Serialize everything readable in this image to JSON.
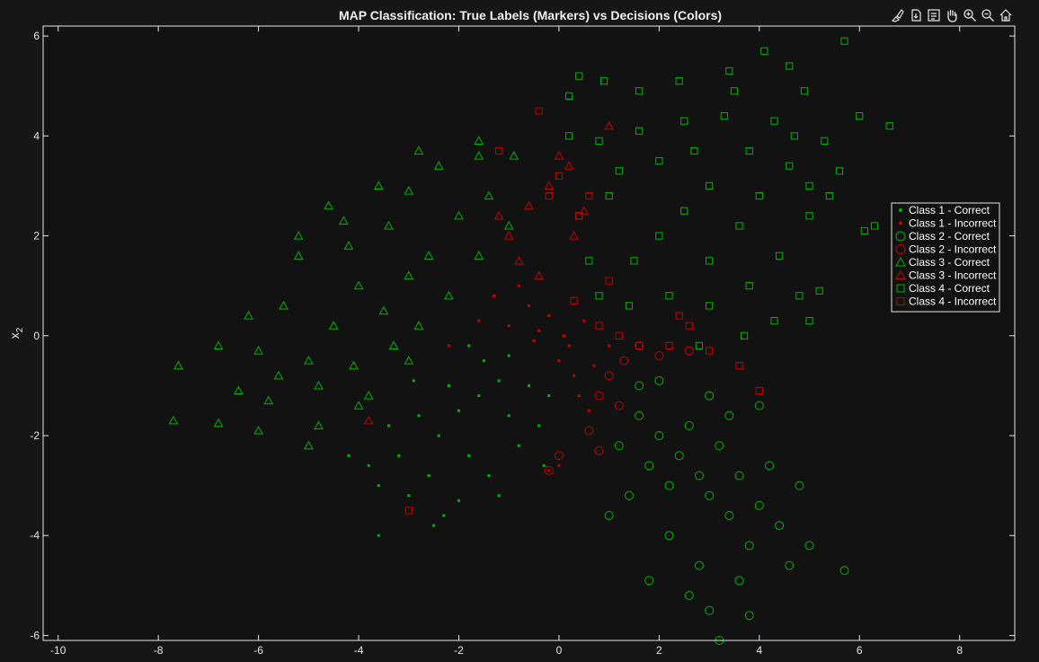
{
  "toolbar": {
    "icons": [
      "brush-icon",
      "export-icon",
      "datatip-icon",
      "pan-hand-icon",
      "zoom-in-icon",
      "zoom-out-icon",
      "home-icon"
    ]
  },
  "chart_data": {
    "type": "scatter",
    "title": "MAP Classification: True Labels (Markers) vs Decisions (Colors)",
    "xlabel": "",
    "ylabel": "x",
    "ylabel_subscript": "2",
    "xlim": [
      -10.3,
      9.1
    ],
    "ylim": [
      -6.1,
      6.2
    ],
    "xticks": [
      -10,
      -8,
      -6,
      -4,
      -2,
      0,
      2,
      4,
      6,
      8
    ],
    "yticks": [
      -6,
      -4,
      -2,
      0,
      2,
      4,
      6
    ],
    "grid": false,
    "background": "#121212",
    "axes_color": "#e6e6e6",
    "correct_color": "#00b400",
    "incorrect_color": "#c80000",
    "legend_placement": "right",
    "legend": [
      {
        "label": "Class 1 - Correct",
        "marker": "dot",
        "color": "#00b400"
      },
      {
        "label": "Class 1 - Incorrect",
        "marker": "dot",
        "color": "#c80000"
      },
      {
        "label": "Class 2 - Correct",
        "marker": "circle",
        "color": "#00b400"
      },
      {
        "label": "Class 2 - Incorrect",
        "marker": "circle",
        "color": "#c80000"
      },
      {
        "label": "Class 3 - Correct",
        "marker": "triangle",
        "color": "#00b400"
      },
      {
        "label": "Class 3 - Incorrect",
        "marker": "triangle",
        "color": "#c80000"
      },
      {
        "label": "Class 4 - Correct",
        "marker": "square",
        "color": "#00b400"
      },
      {
        "label": "Class 4 - Incorrect",
        "marker": "square",
        "color": "#c80000"
      }
    ],
    "series": [
      {
        "class": 1,
        "marker": "dot",
        "correct": [
          [
            -2.0,
            -1.5
          ],
          [
            -1.6,
            -1.2
          ],
          [
            -1.2,
            -0.9
          ],
          [
            -2.4,
            -2.0
          ],
          [
            -1.8,
            -2.4
          ],
          [
            -1.0,
            -1.6
          ],
          [
            -0.6,
            -1.0
          ],
          [
            -2.8,
            -1.6
          ],
          [
            -3.2,
            -2.4
          ],
          [
            -2.6,
            -2.8
          ],
          [
            -1.4,
            -2.8
          ],
          [
            -0.8,
            -2.2
          ],
          [
            -0.4,
            -1.8
          ],
          [
            -2.2,
            -1.0
          ],
          [
            -1.5,
            -0.5
          ],
          [
            -3.0,
            -3.2
          ],
          [
            -2.0,
            -3.3
          ],
          [
            -3.6,
            -3.0
          ],
          [
            -3.8,
            -2.6
          ],
          [
            -1.2,
            -3.2
          ],
          [
            -0.3,
            -2.6
          ],
          [
            -2.5,
            -3.8
          ],
          [
            -3.6,
            -4.0
          ],
          [
            -1.0,
            -0.4
          ],
          [
            -0.2,
            -1.2
          ],
          [
            -1.8,
            -0.2
          ],
          [
            -2.9,
            -0.9
          ],
          [
            -3.4,
            -1.8
          ],
          [
            -4.2,
            -2.4
          ],
          [
            -2.3,
            -3.6
          ]
        ],
        "incorrect": [
          [
            -0.4,
            0.1
          ],
          [
            -0.2,
            0.4
          ],
          [
            0.1,
            0.0
          ],
          [
            -0.6,
            0.6
          ],
          [
            -1.0,
            0.2
          ],
          [
            0.0,
            -0.5
          ],
          [
            0.3,
            -0.8
          ],
          [
            0.4,
            -1.2
          ],
          [
            0.6,
            -1.5
          ],
          [
            -1.3,
            0.8
          ],
          [
            -0.8,
            1.0
          ],
          [
            0.2,
            -0.2
          ],
          [
            0.5,
            0.3
          ],
          [
            0.7,
            -0.6
          ],
          [
            1.0,
            -0.2
          ],
          [
            -0.5,
            -0.1
          ],
          [
            0.0,
            -2.6
          ],
          [
            -0.2,
            -2.7
          ],
          [
            -2.2,
            -0.2
          ],
          [
            -1.6,
            0.3
          ]
        ]
      },
      {
        "class": 2,
        "marker": "circle",
        "correct": [
          [
            2.0,
            -2.0
          ],
          [
            2.4,
            -2.4
          ],
          [
            2.8,
            -2.8
          ],
          [
            1.6,
            -1.6
          ],
          [
            3.0,
            -3.2
          ],
          [
            3.4,
            -3.6
          ],
          [
            2.2,
            -3.0
          ],
          [
            1.8,
            -2.6
          ],
          [
            2.6,
            -1.8
          ],
          [
            3.2,
            -2.2
          ],
          [
            3.6,
            -2.8
          ],
          [
            4.0,
            -3.4
          ],
          [
            4.4,
            -3.8
          ],
          [
            3.8,
            -4.2
          ],
          [
            2.8,
            -4.6
          ],
          [
            2.2,
            -4.0
          ],
          [
            1.4,
            -3.2
          ],
          [
            1.2,
            -2.2
          ],
          [
            1.6,
            -1.0
          ],
          [
            2.0,
            -0.9
          ],
          [
            3.0,
            -1.2
          ],
          [
            3.4,
            -1.6
          ],
          [
            4.2,
            -2.6
          ],
          [
            4.8,
            -3.0
          ],
          [
            5.0,
            -4.2
          ],
          [
            4.6,
            -4.6
          ],
          [
            3.6,
            -4.9
          ],
          [
            3.0,
            -5.5
          ],
          [
            3.2,
            -6.1
          ],
          [
            5.7,
            -4.7
          ],
          [
            1.0,
            -3.6
          ],
          [
            2.6,
            -5.2
          ],
          [
            3.8,
            -5.6
          ],
          [
            1.8,
            -4.9
          ],
          [
            4.0,
            -1.4
          ]
        ],
        "incorrect": [
          [
            1.0,
            -0.8
          ],
          [
            1.3,
            -0.5
          ],
          [
            0.8,
            -1.2
          ],
          [
            1.6,
            -0.2
          ],
          [
            2.0,
            -0.4
          ],
          [
            0.6,
            -1.9
          ],
          [
            0.8,
            -2.3
          ],
          [
            1.2,
            -1.4
          ],
          [
            2.6,
            -0.3
          ],
          [
            0.0,
            -2.4
          ],
          [
            -0.2,
            -2.7
          ]
        ]
      },
      {
        "class": 3,
        "marker": "triangle",
        "correct": [
          [
            -4.0,
            1.0
          ],
          [
            -3.5,
            0.5
          ],
          [
            -3.0,
            1.2
          ],
          [
            -4.5,
            0.2
          ],
          [
            -5.0,
            -0.5
          ],
          [
            -4.2,
            1.8
          ],
          [
            -3.4,
            2.2
          ],
          [
            -2.6,
            1.6
          ],
          [
            -2.0,
            2.4
          ],
          [
            -1.4,
            2.8
          ],
          [
            -5.5,
            0.6
          ],
          [
            -6.0,
            -0.3
          ],
          [
            -6.4,
            -1.1
          ],
          [
            -5.8,
            -1.3
          ],
          [
            -4.8,
            -1.8
          ],
          [
            -3.8,
            -1.2
          ],
          [
            -2.8,
            0.2
          ],
          [
            -2.2,
            0.8
          ],
          [
            -1.6,
            1.6
          ],
          [
            -1.0,
            2.2
          ],
          [
            -3.0,
            2.9
          ],
          [
            -2.4,
            3.4
          ],
          [
            -1.6,
            3.6
          ],
          [
            -4.6,
            2.6
          ],
          [
            -3.6,
            3.0
          ],
          [
            -5.2,
            1.6
          ],
          [
            -6.2,
            0.4
          ],
          [
            -6.8,
            -0.2
          ],
          [
            -7.6,
            -0.6
          ],
          [
            -7.7,
            -1.7
          ],
          [
            -6.8,
            -1.75
          ],
          [
            -6.0,
            -1.9
          ],
          [
            -5.0,
            -2.2
          ],
          [
            -4.0,
            -1.4
          ],
          [
            -3.0,
            -0.5
          ],
          [
            -1.6,
            3.9
          ],
          [
            -0.9,
            3.6
          ],
          [
            -2.8,
            3.7
          ],
          [
            -4.3,
            2.3
          ],
          [
            -5.2,
            2.0
          ],
          [
            -4.1,
            -0.6
          ],
          [
            -3.3,
            -0.2
          ],
          [
            -4.8,
            -1.0
          ],
          [
            -5.6,
            -0.8
          ]
        ],
        "incorrect": [
          [
            -1.0,
            2.0
          ],
          [
            -0.6,
            2.6
          ],
          [
            -0.2,
            3.0
          ],
          [
            0.2,
            3.4
          ],
          [
            -0.8,
            1.5
          ],
          [
            0.5,
            2.5
          ],
          [
            0.0,
            3.6
          ],
          [
            1.0,
            4.2
          ],
          [
            -0.4,
            1.2
          ],
          [
            0.3,
            2.0
          ],
          [
            -3.8,
            -1.7
          ],
          [
            -1.2,
            2.4
          ]
        ]
      },
      {
        "class": 4,
        "marker": "square",
        "correct": [
          [
            2.0,
            2.0
          ],
          [
            1.5,
            1.5
          ],
          [
            2.5,
            2.5
          ],
          [
            3.0,
            3.0
          ],
          [
            1.0,
            2.8
          ],
          [
            2.0,
            3.5
          ],
          [
            3.0,
            1.5
          ],
          [
            3.6,
            2.2
          ],
          [
            4.0,
            2.8
          ],
          [
            4.6,
            3.4
          ],
          [
            1.4,
            0.6
          ],
          [
            2.2,
            0.8
          ],
          [
            3.0,
            0.6
          ],
          [
            3.8,
            1.0
          ],
          [
            4.4,
            1.6
          ],
          [
            5.0,
            2.4
          ],
          [
            5.4,
            2.8
          ],
          [
            5.6,
            3.3
          ],
          [
            6.1,
            2.1
          ],
          [
            6.3,
            2.2
          ],
          [
            6.0,
            4.4
          ],
          [
            6.6,
            4.2
          ],
          [
            5.7,
            5.9
          ],
          [
            4.1,
            5.7
          ],
          [
            4.6,
            5.4
          ],
          [
            3.4,
            5.3
          ],
          [
            2.4,
            5.1
          ],
          [
            1.6,
            4.9
          ],
          [
            0.9,
            5.1
          ],
          [
            0.4,
            5.2
          ],
          [
            0.2,
            4.8
          ],
          [
            0.2,
            4.0
          ],
          [
            3.5,
            4.9
          ],
          [
            4.9,
            4.9
          ],
          [
            4.3,
            4.3
          ],
          [
            0.8,
            3.9
          ],
          [
            1.6,
            4.1
          ],
          [
            2.5,
            4.3
          ],
          [
            3.3,
            4.4
          ],
          [
            4.3,
            0.3
          ],
          [
            3.7,
            0.0
          ],
          [
            2.8,
            -0.2
          ],
          [
            4.8,
            0.8
          ],
          [
            5.2,
            0.9
          ],
          [
            5.0,
            0.3
          ],
          [
            0.6,
            1.5
          ],
          [
            0.4,
            2.4
          ],
          [
            0.8,
            0.8
          ],
          [
            3.8,
            3.7
          ],
          [
            4.7,
            4.0
          ],
          [
            5.3,
            3.9
          ],
          [
            5.0,
            3.0
          ],
          [
            1.2,
            3.3
          ],
          [
            2.7,
            3.7
          ]
        ],
        "incorrect": [
          [
            -0.4,
            4.5
          ],
          [
            0.6,
            2.8
          ],
          [
            0.4,
            2.4
          ],
          [
            -0.2,
            2.8
          ],
          [
            -1.2,
            3.7
          ],
          [
            0.0,
            3.2
          ],
          [
            0.8,
            0.2
          ],
          [
            1.2,
            0.0
          ],
          [
            1.6,
            -0.2
          ],
          [
            2.4,
            0.4
          ],
          [
            3.0,
            -0.3
          ],
          [
            3.6,
            -0.6
          ],
          [
            4.0,
            -1.1
          ],
          [
            -3.0,
            -3.5
          ],
          [
            0.3,
            0.7
          ],
          [
            1.0,
            1.1
          ],
          [
            2.2,
            -0.2
          ],
          [
            2.6,
            0.2
          ]
        ]
      }
    ]
  }
}
